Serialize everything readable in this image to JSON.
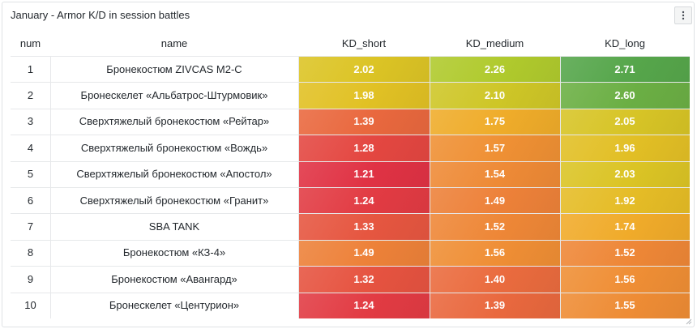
{
  "panel": {
    "title": "January - Armor K/D in session battles"
  },
  "table": {
    "headers": {
      "num": "num",
      "name": "name",
      "kd_short": "KD_short",
      "kd_medium": "KD_medium",
      "kd_long": "KD_long"
    },
    "rows": [
      {
        "num": "1",
        "name": "Бронекостюм ZIVCAS M2-C",
        "kd_short": "2.02",
        "kd_medium": "2.26",
        "kd_long": "2.71"
      },
      {
        "num": "2",
        "name": "Бронескелет «Альбатрос-Штурмовик»",
        "kd_short": "1.98",
        "kd_medium": "2.10",
        "kd_long": "2.60"
      },
      {
        "num": "3",
        "name": "Сверхтяжелый бронекостюм «Рейтар»",
        "kd_short": "1.39",
        "kd_medium": "1.75",
        "kd_long": "2.05"
      },
      {
        "num": "4",
        "name": "Сверхтяжелый бронекостюм «Вождь»",
        "kd_short": "1.28",
        "kd_medium": "1.57",
        "kd_long": "1.96"
      },
      {
        "num": "5",
        "name": "Сверхтяжелый бронекостюм «Апостол»",
        "kd_short": "1.21",
        "kd_medium": "1.54",
        "kd_long": "2.03"
      },
      {
        "num": "6",
        "name": "Сверхтяжелый бронекостюм «Гранит»",
        "kd_short": "1.24",
        "kd_medium": "1.49",
        "kd_long": "1.92"
      },
      {
        "num": "7",
        "name": "SBA TANK",
        "kd_short": "1.33",
        "kd_medium": "1.52",
        "kd_long": "1.74"
      },
      {
        "num": "8",
        "name": "Бронекостюм «КЗ-4»",
        "kd_short": "1.49",
        "kd_medium": "1.56",
        "kd_long": "1.52"
      },
      {
        "num": "9",
        "name": "Бронекостюм «Авангард»",
        "kd_short": "1.32",
        "kd_medium": "1.40",
        "kd_long": "1.56"
      },
      {
        "num": "10",
        "name": "Бронескелет «Центурион»",
        "kd_short": "1.24",
        "kd_medium": "1.39",
        "kd_long": "1.55"
      }
    ]
  },
  "colors": {
    "red": "#e02f44",
    "orange": "#ec7a3c",
    "amber": "#f2a72b",
    "yellow": "#e0c324",
    "lime": "#a9cb2e",
    "green": "#56a64b"
  }
}
